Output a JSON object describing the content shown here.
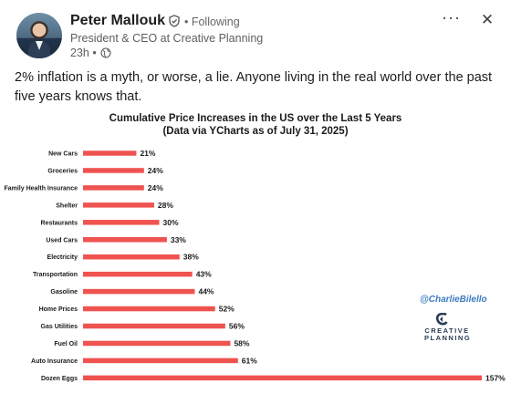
{
  "post": {
    "author": "Peter Mallouk",
    "follow_status": "• Following",
    "headline": "President & CEO at Creative Planning",
    "time": "23h •",
    "more_label": "···",
    "close_label": "✕",
    "text": "2% inflation is a myth, or worse, a lie. Anyone living in the real world over the past five years knows that."
  },
  "icons": {
    "verified": "verified-icon",
    "globe": "globe-icon",
    "more": "more-icon",
    "close": "close-icon"
  },
  "colors": {
    "bar": "#ef5350",
    "watermark": "#3b7bbf"
  },
  "branding": {
    "watermark": "@CharlieBilello",
    "logo_line1": "CREATIVE",
    "logo_line2": "PLANNING"
  },
  "chart_data": {
    "type": "bar",
    "orientation": "horizontal",
    "title": "Cumulative Price Increases in the US over the Last 5 Years",
    "subtitle": "(Data via YCharts as of July 31, 2025)",
    "categories": [
      "New Cars",
      "Groceries",
      "Family Health Insurance",
      "Shelter",
      "Restaurants",
      "Used Cars",
      "Electricity",
      "Transportation",
      "Gasoline",
      "Home Prices",
      "Gas Utilities",
      "Fuel Oil",
      "Auto Insurance",
      "Dozen Eggs"
    ],
    "values": [
      21,
      24,
      24,
      28,
      30,
      33,
      38,
      43,
      44,
      52,
      56,
      58,
      61,
      157
    ],
    "labels": [
      "21%",
      "24%",
      "24%",
      "28%",
      "30%",
      "33%",
      "38%",
      "43%",
      "44%",
      "52%",
      "56%",
      "58%",
      "61%",
      "157%"
    ],
    "xlim": [
      0,
      157
    ],
    "grid": false,
    "legend": "none"
  }
}
